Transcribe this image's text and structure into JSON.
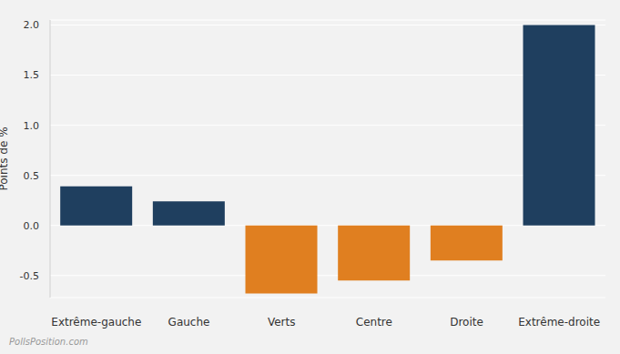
{
  "chart_data": {
    "type": "bar",
    "categories": [
      "Extrême-gauche",
      "Gauche",
      "Verts",
      "Centre",
      "Droite",
      "Extrême-droite"
    ],
    "values": [
      0.39,
      0.24,
      -0.68,
      -0.55,
      -0.35,
      2.0
    ],
    "colors": [
      "#1f3f5f",
      "#1f3f5f",
      "#e07f20",
      "#e07f20",
      "#e07f20",
      "#1f3f5f"
    ],
    "y_label": "Points de %",
    "source": "PollsPosition.com",
    "ylim": [
      -0.72,
      2.05
    ],
    "yticks": [
      -0.5,
      {
        "value": 0,
        "label": "0.0"
      },
      0.5,
      {
        "value": 1,
        "label": "1.0"
      },
      1.5,
      {
        "value": 2,
        "label": "2.0"
      }
    ],
    "grid": true
  }
}
